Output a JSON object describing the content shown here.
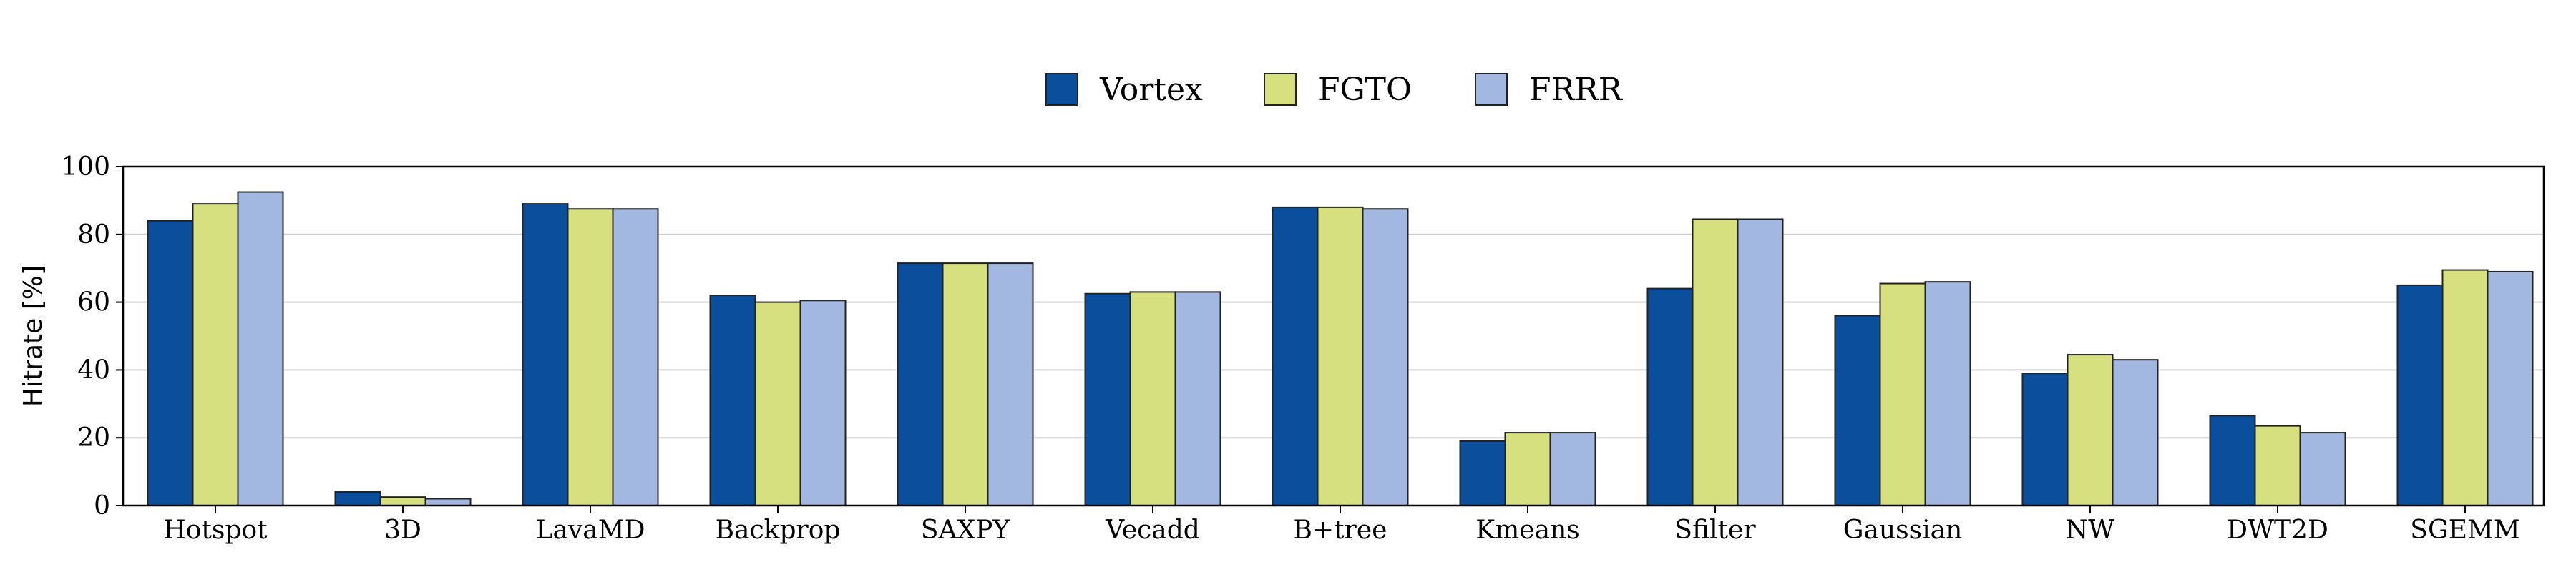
{
  "chart_data": {
    "type": "bar",
    "title": "",
    "xlabel": "",
    "ylabel": "Hitrate [%]",
    "ylim": [
      0,
      100
    ],
    "yticks": [
      0,
      20,
      40,
      60,
      80,
      100
    ],
    "grid": "horizontal",
    "legend_position": "top-center",
    "categories": [
      "Hotspot",
      "3D",
      "LavaMD",
      "Backprop",
      "SAXPY",
      "Vecadd",
      "B+tree",
      "Kmeans",
      "Sfilter",
      "Gaussian",
      "NW",
      "DWT2D",
      "SGEMM"
    ],
    "series": [
      {
        "name": "Vortex",
        "color": "#0b4f9c",
        "values": [
          84,
          4,
          89,
          62,
          71.5,
          62.5,
          88,
          19,
          64,
          56,
          39,
          26.5,
          65
        ]
      },
      {
        "name": "FGTO",
        "color": "#d6e07e",
        "values": [
          89,
          2.5,
          87.5,
          60,
          71.5,
          63,
          88,
          21.5,
          84.5,
          65.5,
          44.5,
          23.5,
          69.5
        ]
      },
      {
        "name": "FRRR",
        "color": "#a3b8e1",
        "values": [
          92.5,
          2,
          87.5,
          60.5,
          71.5,
          63,
          87.5,
          21.5,
          84.5,
          66,
          43,
          21.5,
          69
        ]
      }
    ]
  }
}
